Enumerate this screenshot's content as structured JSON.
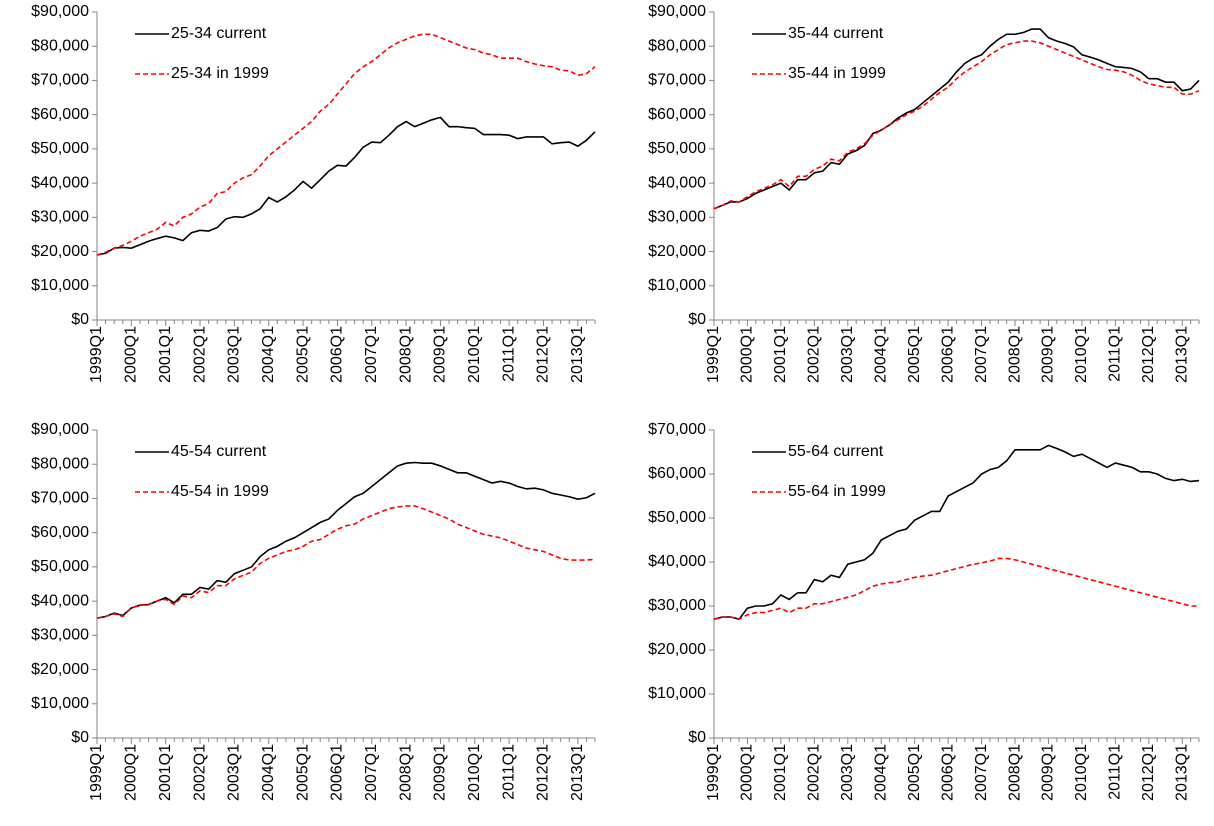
{
  "chart_data": [
    {
      "type": "line",
      "categories": [
        "1999Q1",
        null,
        null,
        null,
        "2000Q1",
        null,
        null,
        null,
        "2001Q1",
        null,
        null,
        null,
        "2002Q1",
        null,
        null,
        null,
        "2003Q1",
        null,
        null,
        null,
        "2004Q1",
        null,
        null,
        null,
        "2005Q1",
        null,
        null,
        null,
        "2006Q1",
        null,
        null,
        null,
        "2007Q1",
        null,
        null,
        null,
        "2008Q1",
        null,
        null,
        null,
        "2009Q1",
        null,
        null,
        null,
        "2010Q1",
        null,
        null,
        null,
        "2011Q1",
        null,
        null,
        null,
        "2012Q1",
        null,
        null,
        null,
        "2013Q1",
        null,
        null
      ],
      "series": [
        {
          "name": "25-34 current",
          "color": "#000000",
          "dashed": false,
          "values": [
            19000,
            19500,
            21000,
            21200,
            21000,
            22000,
            23000,
            23800,
            24500,
            24000,
            23200,
            25500,
            26200,
            26000,
            27000,
            29500,
            30200,
            30000,
            31000,
            32500,
            35800,
            34500,
            36000,
            38000,
            40500,
            38500,
            41000,
            43500,
            45200,
            45000,
            47500,
            50500,
            52000,
            51800,
            54000,
            56500,
            58000,
            56500,
            57500,
            58500,
            59200,
            56500,
            56500,
            56200,
            56000,
            54200,
            54200,
            54200,
            54000,
            53000,
            53500,
            53500,
            53500,
            51500,
            51800,
            52000,
            50800,
            52500,
            55000
          ]
        },
        {
          "name": "25-34 in 1999",
          "color": "#ff0000",
          "dashed": true,
          "values": [
            19000,
            19800,
            21000,
            21800,
            23000,
            24500,
            25500,
            26500,
            28500,
            27500,
            30000,
            31000,
            33000,
            34000,
            37000,
            37500,
            40000,
            41500,
            42500,
            45000,
            48000,
            50000,
            52000,
            54000,
            56000,
            58000,
            61000,
            63000,
            66000,
            69000,
            72000,
            74000,
            75500,
            77500,
            79500,
            81000,
            82000,
            83000,
            83500,
            83500,
            82500,
            81500,
            80500,
            79500,
            79000,
            78000,
            77500,
            76500,
            76500,
            76500,
            75500,
            74800,
            74300,
            74000,
            73000,
            72800,
            71500,
            72000,
            74000
          ]
        }
      ],
      "ylim": [
        0,
        90000
      ],
      "yticks": [
        {
          "value": 0,
          "label": "$0"
        },
        {
          "value": 10000,
          "label": "$10,000"
        },
        {
          "value": 20000,
          "label": "$20,000"
        },
        {
          "value": 30000,
          "label": "$30,000"
        },
        {
          "value": 40000,
          "label": "$40,000"
        },
        {
          "value": 50000,
          "label": "$50,000"
        },
        {
          "value": 60000,
          "label": "$60,000"
        },
        {
          "value": 70000,
          "label": "$70,000"
        },
        {
          "value": 80000,
          "label": "$80,000"
        },
        {
          "value": 90000,
          "label": "$90,000"
        }
      ]
    },
    {
      "type": "line",
      "categories": [
        "1999Q1",
        null,
        null,
        null,
        "2000Q1",
        null,
        null,
        null,
        "2001Q1",
        null,
        null,
        null,
        "2002Q1",
        null,
        null,
        null,
        "2003Q1",
        null,
        null,
        null,
        "2004Q1",
        null,
        null,
        null,
        "2005Q1",
        null,
        null,
        null,
        "2006Q1",
        null,
        null,
        null,
        "2007Q1",
        null,
        null,
        null,
        "2008Q1",
        null,
        null,
        null,
        "2009Q1",
        null,
        null,
        null,
        "2010Q1",
        null,
        null,
        null,
        "2011Q1",
        null,
        null,
        null,
        "2012Q1",
        null,
        null,
        null,
        "2013Q1",
        null,
        null
      ],
      "series": [
        {
          "name": "35-44 current",
          "color": "#000000",
          "dashed": false,
          "values": [
            32500,
            33500,
            34500,
            34500,
            35500,
            37000,
            38000,
            39000,
            40000,
            38000,
            41000,
            41000,
            43000,
            43500,
            46000,
            45500,
            48500,
            49500,
            51000,
            54500,
            55500,
            57000,
            59000,
            60500,
            61500,
            63500,
            65500,
            67500,
            69500,
            72500,
            75000,
            76500,
            77500,
            80000,
            82000,
            83500,
            83500,
            84000,
            85000,
            85000,
            82500,
            81500,
            80800,
            79800,
            77500,
            76800,
            76000,
            75000,
            74000,
            73800,
            73500,
            72500,
            70500,
            70500,
            69500,
            69500,
            67000,
            67500,
            70000
          ]
        },
        {
          "name": "35-44 in 1999",
          "color": "#ff0000",
          "dashed": true,
          "values": [
            32500,
            33500,
            34800,
            34500,
            36000,
            37500,
            38500,
            39500,
            41000,
            39000,
            42000,
            42000,
            44000,
            45000,
            47000,
            46500,
            49000,
            50000,
            51500,
            54000,
            55500,
            57000,
            58500,
            60000,
            61000,
            62500,
            64500,
            66500,
            68000,
            70500,
            72500,
            74000,
            75500,
            77500,
            79000,
            80500,
            81000,
            81500,
            81500,
            81000,
            80000,
            79000,
            78000,
            77000,
            76000,
            75000,
            74000,
            73200,
            73000,
            72500,
            71500,
            70000,
            69000,
            68500,
            68000,
            68000,
            66000,
            66000,
            67000
          ]
        }
      ],
      "ylim": [
        0,
        90000
      ],
      "yticks": [
        {
          "value": 0,
          "label": "$0"
        },
        {
          "value": 10000,
          "label": "$10,000"
        },
        {
          "value": 20000,
          "label": "$20,000"
        },
        {
          "value": 30000,
          "label": "$30,000"
        },
        {
          "value": 40000,
          "label": "$40,000"
        },
        {
          "value": 50000,
          "label": "$50,000"
        },
        {
          "value": 60000,
          "label": "$60,000"
        },
        {
          "value": 70000,
          "label": "$70,000"
        },
        {
          "value": 80000,
          "label": "$80,000"
        },
        {
          "value": 90000,
          "label": "$90,000"
        }
      ]
    },
    {
      "type": "line",
      "categories": [
        "1999Q1",
        null,
        null,
        null,
        "2000Q1",
        null,
        null,
        null,
        "2001Q1",
        null,
        null,
        null,
        "2002Q1",
        null,
        null,
        null,
        "2003Q1",
        null,
        null,
        null,
        "2004Q1",
        null,
        null,
        null,
        "2005Q1",
        null,
        null,
        null,
        "2006Q1",
        null,
        null,
        null,
        "2007Q1",
        null,
        null,
        null,
        "2008Q1",
        null,
        null,
        null,
        "2009Q1",
        null,
        null,
        null,
        "2010Q1",
        null,
        null,
        null,
        "2011Q1",
        null,
        null,
        null,
        "2012Q1",
        null,
        null,
        null,
        "2013Q1",
        null,
        null
      ],
      "series": [
        {
          "name": "45-54 current",
          "color": "#000000",
          "dashed": false,
          "values": [
            35000,
            35500,
            36500,
            35800,
            38000,
            38800,
            39000,
            40000,
            41000,
            39500,
            42000,
            42000,
            44000,
            43500,
            46000,
            45500,
            48000,
            49000,
            50000,
            53000,
            55000,
            56000,
            57500,
            58500,
            60000,
            61500,
            63000,
            64000,
            66500,
            68500,
            70500,
            71500,
            73500,
            75500,
            77500,
            79500,
            80300,
            80500,
            80300,
            80300,
            79500,
            78500,
            77500,
            77500,
            76500,
            75500,
            74500,
            75000,
            74500,
            73500,
            72800,
            73000,
            72500,
            71500,
            71000,
            70500,
            69800,
            70200,
            71500
          ]
        },
        {
          "name": "45-54 in 1999",
          "color": "#ff0000",
          "dashed": true,
          "values": [
            35000,
            35500,
            36300,
            35500,
            38000,
            38800,
            39000,
            40000,
            40500,
            39000,
            41500,
            41000,
            43000,
            42500,
            44500,
            44500,
            46500,
            47500,
            48500,
            51000,
            52500,
            53500,
            54500,
            55000,
            56000,
            57500,
            58000,
            59500,
            61000,
            62000,
            62500,
            64000,
            65000,
            66000,
            67000,
            67500,
            67800,
            67800,
            67000,
            66000,
            65000,
            64000,
            62500,
            61500,
            60500,
            59500,
            59000,
            58500,
            57500,
            56500,
            55500,
            55000,
            54500,
            53500,
            52500,
            52000,
            52000,
            52000,
            52200
          ]
        }
      ],
      "ylim": [
        0,
        90000
      ],
      "yticks": [
        {
          "value": 0,
          "label": "$0"
        },
        {
          "value": 10000,
          "label": "$10,000"
        },
        {
          "value": 20000,
          "label": "$20,000"
        },
        {
          "value": 30000,
          "label": "$30,000"
        },
        {
          "value": 40000,
          "label": "$40,000"
        },
        {
          "value": 50000,
          "label": "$50,000"
        },
        {
          "value": 60000,
          "label": "$60,000"
        },
        {
          "value": 70000,
          "label": "$70,000"
        },
        {
          "value": 80000,
          "label": "$80,000"
        },
        {
          "value": 90000,
          "label": "$90,000"
        }
      ]
    },
    {
      "type": "line",
      "categories": [
        "1999Q1",
        null,
        null,
        null,
        "2000Q1",
        null,
        null,
        null,
        "2001Q1",
        null,
        null,
        null,
        "2002Q1",
        null,
        null,
        null,
        "2003Q1",
        null,
        null,
        null,
        "2004Q1",
        null,
        null,
        null,
        "2005Q1",
        null,
        null,
        null,
        "2006Q1",
        null,
        null,
        null,
        "2007Q1",
        null,
        null,
        null,
        "2008Q1",
        null,
        null,
        null,
        "2009Q1",
        null,
        null,
        null,
        "2010Q1",
        null,
        null,
        null,
        "2011Q1",
        null,
        null,
        null,
        "2012Q1",
        null,
        null,
        null,
        "2013Q1",
        null,
        null
      ],
      "series": [
        {
          "name": "55-64 current",
          "color": "#000000",
          "dashed": false,
          "values": [
            27000,
            27500,
            27500,
            27000,
            29500,
            30000,
            30000,
            30500,
            32500,
            31500,
            33000,
            33000,
            36000,
            35500,
            37000,
            36500,
            39500,
            40000,
            40500,
            42000,
            45000,
            46000,
            47000,
            47500,
            49500,
            50500,
            51500,
            51500,
            55000,
            56000,
            57000,
            58000,
            60000,
            61000,
            61500,
            63000,
            65500,
            65500,
            65500,
            65500,
            66500,
            65800,
            65000,
            64000,
            64500,
            63500,
            62500,
            61500,
            62500,
            62000,
            61500,
            60500,
            60500,
            60000,
            59000,
            58500,
            58800,
            58300,
            58500
          ]
        },
        {
          "name": "55-64 in 1999",
          "color": "#ff0000",
          "dashed": true,
          "values": [
            27000,
            27500,
            27500,
            27000,
            28000,
            28500,
            28500,
            29000,
            29500,
            28500,
            29500,
            29500,
            30500,
            30500,
            31000,
            31500,
            32000,
            32500,
            33500,
            34500,
            35000,
            35300,
            35500,
            36000,
            36500,
            36800,
            37000,
            37500,
            38000,
            38500,
            39000,
            39500,
            39800,
            40200,
            40800,
            40800,
            40500,
            40000,
            39500,
            39000,
            38500,
            38000,
            37500,
            37000,
            36500,
            36000,
            35500,
            35000,
            34500,
            34000,
            33500,
            33000,
            32500,
            32000,
            31500,
            31000,
            30500,
            30000,
            30000
          ]
        }
      ],
      "ylim": [
        0,
        70000
      ],
      "yticks": [
        {
          "value": 0,
          "label": "$0"
        },
        {
          "value": 10000,
          "label": "$10,000"
        },
        {
          "value": 20000,
          "label": "$20,000"
        },
        {
          "value": 30000,
          "label": "$30,000"
        },
        {
          "value": 40000,
          "label": "$40,000"
        },
        {
          "value": 50000,
          "label": "$50,000"
        },
        {
          "value": 60000,
          "label": "$60,000"
        },
        {
          "value": 70000,
          "label": "$70,000"
        }
      ]
    }
  ]
}
